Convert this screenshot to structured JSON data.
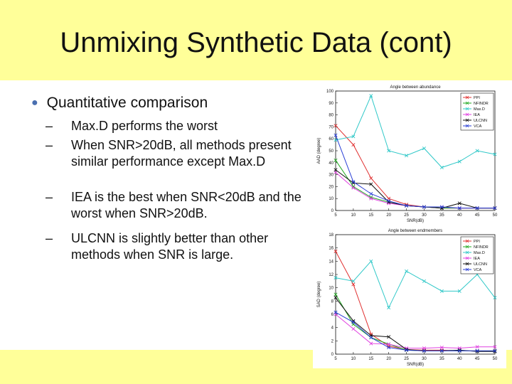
{
  "slide": {
    "title": "Unmixing Synthetic Data (cont)",
    "bullet": "Quantitative comparison",
    "sub_bullets": [
      "Max.D performs the worst",
      "When SNR>20dB, all methods present similar performance except Max.D",
      "IEA is the best when SNR<20dB and the worst when SNR>20dB.",
      "ULCNN is slightly better than other methods when SNR is large."
    ],
    "dash": "–",
    "bullet_color": "#4a6fb0",
    "band_color": "#ffff99"
  },
  "chart_data": [
    {
      "type": "line",
      "title": "Angle between abundance",
      "xlabel": "SNR(dB)",
      "ylabel": "AAD (degree)",
      "x": [
        5,
        10,
        15,
        20,
        25,
        30,
        35,
        40,
        45,
        50
      ],
      "xticks": [
        5,
        10,
        15,
        20,
        25,
        30,
        35,
        40,
        45,
        50
      ],
      "ylim": [
        0,
        100
      ],
      "yticks": [
        0,
        10,
        20,
        30,
        40,
        50,
        60,
        70,
        80,
        90,
        100
      ],
      "legend_position": "top-right",
      "series": [
        {
          "name": "PPI",
          "color": "#e03030",
          "marker": "x",
          "values": [
            71,
            55,
            27,
            10,
            5,
            3,
            2,
            2,
            2,
            2
          ]
        },
        {
          "name": "NFINDR",
          "color": "#22aa22",
          "marker": "x",
          "values": [
            42,
            20,
            11,
            7,
            4,
            3,
            2,
            2,
            2,
            2
          ]
        },
        {
          "name": "Max.D",
          "color": "#30c8c8",
          "marker": "x",
          "values": [
            59,
            62,
            96,
            50,
            46,
            52,
            36,
            41,
            50,
            47
          ]
        },
        {
          "name": "IEA",
          "color": "#e040e0",
          "marker": "x",
          "values": [
            32,
            19,
            10,
            6,
            4,
            3,
            3,
            2,
            2,
            2
          ]
        },
        {
          "name": "ULCNN",
          "color": "#111111",
          "marker": "x",
          "values": [
            34,
            23,
            22,
            7,
            4,
            3,
            2,
            6,
            2,
            2
          ]
        },
        {
          "name": "VCA",
          "color": "#2a3fd6",
          "marker": "x",
          "values": [
            63,
            24,
            14,
            8,
            4,
            3,
            3,
            2,
            2,
            2
          ]
        }
      ]
    },
    {
      "type": "line",
      "title": "Angle between endmembers",
      "xlabel": "SNR(dB)",
      "ylabel": "SAD (degree)",
      "x": [
        5,
        10,
        15,
        20,
        25,
        30,
        35,
        40,
        45,
        50
      ],
      "xticks": [
        5,
        10,
        15,
        20,
        25,
        30,
        35,
        40,
        45,
        50
      ],
      "ylim": [
        0,
        18
      ],
      "yticks": [
        0,
        2,
        4,
        6,
        8,
        10,
        12,
        14,
        16,
        18
      ],
      "legend_position": "top-right",
      "series": [
        {
          "name": "PPI",
          "color": "#e03030",
          "marker": "x",
          "values": [
            15.5,
            10.5,
            3.0,
            1.2,
            0.7,
            0.6,
            0.6,
            0.5,
            0.5,
            0.5
          ]
        },
        {
          "name": "NFINDR",
          "color": "#22aa22",
          "marker": "x",
          "values": [
            9.0,
            4.5,
            2.5,
            1.5,
            0.6,
            0.5,
            0.5,
            0.5,
            0.5,
            0.5
          ]
        },
        {
          "name": "Max.D",
          "color": "#30c8c8",
          "marker": "x",
          "values": [
            11.5,
            11.0,
            14.0,
            7.0,
            12.5,
            11.0,
            9.5,
            9.5,
            12.0,
            8.5
          ]
        },
        {
          "name": "IEA",
          "color": "#e040e0",
          "marker": "x",
          "values": [
            6.0,
            3.8,
            1.6,
            1.5,
            0.9,
            0.9,
            1.0,
            0.9,
            1.1,
            1.1
          ]
        },
        {
          "name": "ULCNN",
          "color": "#111111",
          "marker": "x",
          "values": [
            8.5,
            5.0,
            2.8,
            2.6,
            0.7,
            0.5,
            0.5,
            0.6,
            0.4,
            0.4
          ]
        },
        {
          "name": "VCA",
          "color": "#2a3fd6",
          "marker": "x",
          "values": [
            6.3,
            4.8,
            2.5,
            1.0,
            0.6,
            0.5,
            0.5,
            0.5,
            0.5,
            0.5
          ]
        }
      ]
    }
  ]
}
